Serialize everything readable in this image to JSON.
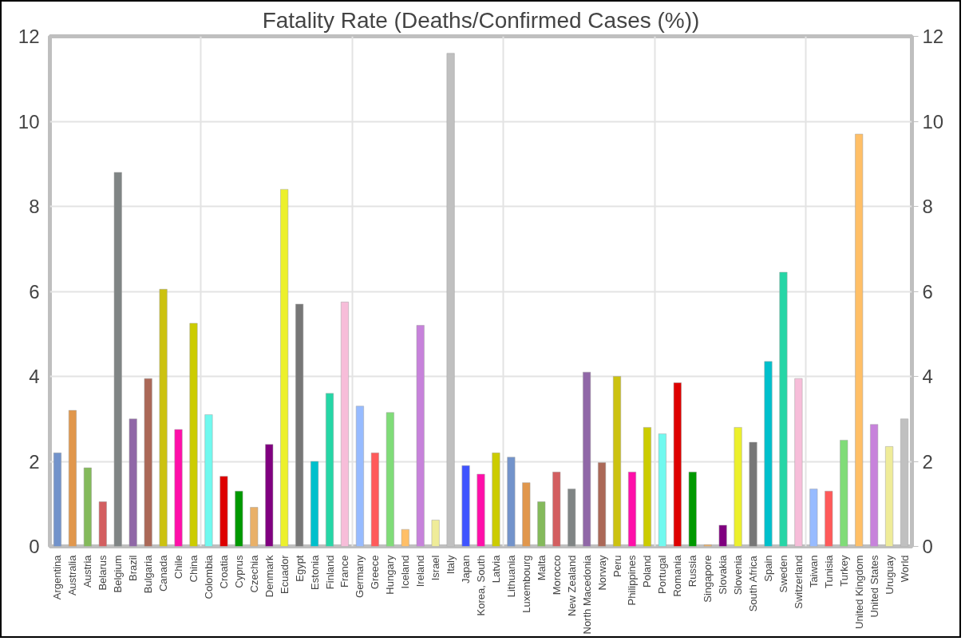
{
  "chart_data": {
    "type": "bar",
    "title": "Fatality Rate (Deaths/Confirmed Cases (%))",
    "categories": [
      "Argentina",
      "Australia",
      "Austria",
      "Belarus",
      "Belgium",
      "Brazil",
      "Bulgaria",
      "Canada",
      "Chile",
      "China",
      "Colombia",
      "Croatia",
      "Cyprus",
      "Czechia",
      "Denmark",
      "Ecuador",
      "Egypt",
      "Estonia",
      "Finland",
      "France",
      "Germany",
      "Greece",
      "Hungary",
      "Iceland",
      "Ireland",
      "Israel",
      "Italy",
      "Japan",
      "Korea, South",
      "Latvia",
      "Lithuania",
      "Luxembourg",
      "Malta",
      "Morocco",
      "New Zealand",
      "North Macedonia",
      "Norway",
      "Peru",
      "Philippines",
      "Poland",
      "Portugal",
      "Romania",
      "Russia",
      "Singapore",
      "Slovakia",
      "Slovenia",
      "South Africa",
      "Spain",
      "Sweden",
      "Switzerland",
      "Taiwan",
      "Tunisia",
      "Turkey",
      "United Kingdom",
      "United States",
      "Uruguay",
      "World"
    ],
    "values": [
      2.2,
      3.2,
      1.85,
      1.05,
      8.8,
      3.0,
      3.95,
      6.05,
      2.75,
      5.25,
      3.1,
      1.65,
      1.3,
      0.92,
      2.4,
      8.4,
      5.7,
      2.0,
      3.6,
      5.75,
      3.3,
      2.2,
      3.15,
      0.4,
      5.2,
      0.62,
      11.6,
      1.9,
      1.7,
      2.2,
      2.1,
      1.5,
      1.05,
      1.75,
      1.35,
      4.1,
      1.97,
      4.0,
      1.75,
      2.8,
      2.65,
      3.85,
      1.75,
      0.04,
      0.5,
      2.8,
      2.45,
      4.35,
      6.45,
      3.95,
      1.35,
      1.3,
      2.5,
      9.7,
      2.87,
      2.35,
      3.0
    ],
    "colors": [
      "#7293cb",
      "#e1974c",
      "#84ba5b",
      "#d35e60",
      "#808585",
      "#9067a7",
      "#ab6857",
      "#ccc210",
      "#ff0fa9",
      "#cccc00",
      "#70f9ef",
      "#de0000",
      "#009900",
      "#e9b068",
      "#800080",
      "#ecf02c",
      "#777777",
      "#00c0cc",
      "#26d6a6",
      "#f7bdd9",
      "#97bbff",
      "#ff5a5a",
      "#80dc78",
      "#ffbf67",
      "#c782db",
      "#efec99",
      "#c0c0c0",
      "#3f53ff",
      "#ff0fa9",
      "#cccc00",
      "#7293cb",
      "#e1974c",
      "#84ba5b",
      "#d35e60",
      "#808585",
      "#9067a7",
      "#ab6857",
      "#ccc210",
      "#ff0fa9",
      "#cccc00",
      "#70f9ef",
      "#de0000",
      "#009900",
      "#e9b068",
      "#800080",
      "#ecf02c",
      "#777777",
      "#00c0cc",
      "#26d6a6",
      "#f7bdd9",
      "#97bbff",
      "#ff5a5a",
      "#80dc78",
      "#ffbf67",
      "#c782db",
      "#efec99",
      "#c0c0c0"
    ],
    "ylim": [
      0,
      12
    ],
    "yticks": [
      0,
      2,
      4,
      6,
      8,
      10,
      12
    ],
    "y2lim": [
      0,
      12
    ],
    "y2ticks": [
      0,
      2,
      4,
      6,
      8,
      10,
      12
    ],
    "grid": true
  }
}
